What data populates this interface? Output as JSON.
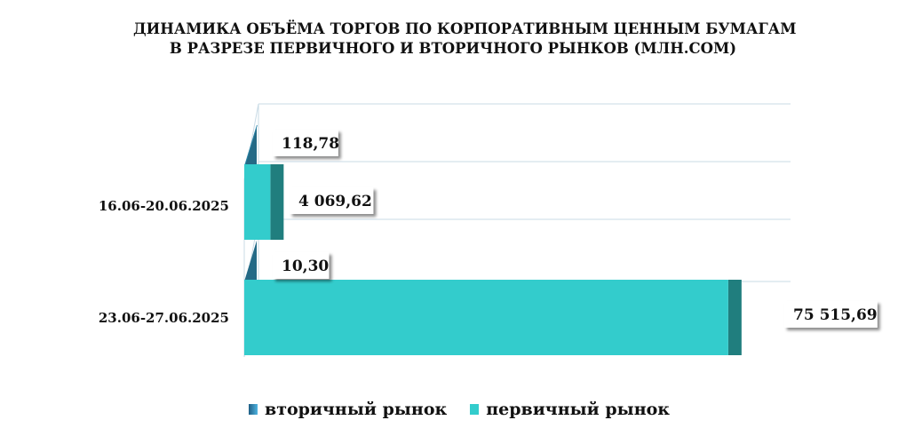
{
  "chart_data": {
    "type": "bar",
    "orientation": "horizontal",
    "three_d": true,
    "title_lines": [
      "ДИНАМИКА ОБЪЁМА ТОРГОВ ПО КОРПОРАТИВНЫМ ЦЕННЫМ БУМАГАМ",
      "В РАЗРЕЗЕ ПЕРВИЧНОГО И ВТОРИЧНОГО РЫНКОВ  (МЛН.СОМ)"
    ],
    "categories": [
      "16.06-20.06.2025",
      "23.06-27.06.2025"
    ],
    "series": [
      {
        "name": "вторичный рынок",
        "values": [
          118.78,
          10.3
        ],
        "labels": [
          "118,78",
          "10,30"
        ],
        "color": "#2a7d9e"
      },
      {
        "name": "первичный рынок",
        "values": [
          4069.62,
          75515.69
        ],
        "labels": [
          "4 069,62",
          "75 515,69"
        ],
        "color": "#33cccc"
      }
    ],
    "xlim": [
      0,
      79000
    ],
    "grid": true,
    "legend_position": "bottom"
  }
}
